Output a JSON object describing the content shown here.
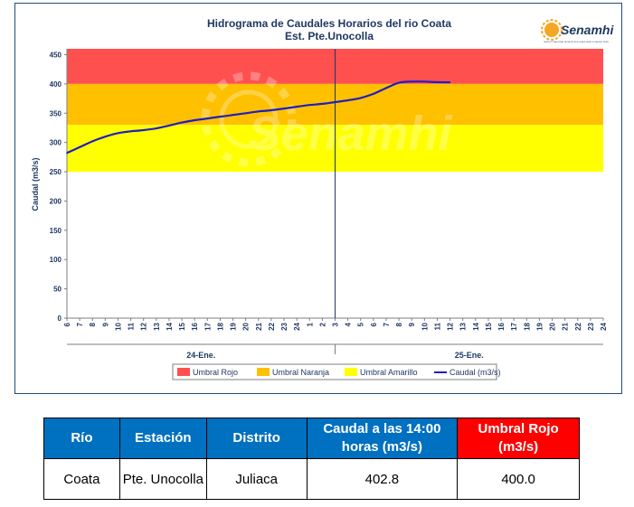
{
  "chart_data": {
    "type": "area",
    "title": "Hidrograma de Caudales Horarios del rio Coata",
    "subtitle": "Est. Pte.Unocolla",
    "ylabel": "Caudal (m3/s)",
    "ylim": [
      0,
      450
    ],
    "yticks": [
      0,
      50,
      100,
      150,
      200,
      250,
      300,
      350,
      400,
      450
    ],
    "x_tick_labels": [
      "6",
      "7",
      "8",
      "9",
      "10",
      "11",
      "12",
      "13",
      "14",
      "15",
      "16",
      "17",
      "18",
      "19",
      "20",
      "21",
      "22",
      "23",
      "24",
      "1",
      "2",
      "3",
      "4",
      "5",
      "6",
      "7",
      "8",
      "9",
      "10",
      "11",
      "12",
      "13",
      "14",
      "15",
      "16",
      "17",
      "18",
      "19",
      "20",
      "21",
      "22",
      "23",
      "24"
    ],
    "day_labels": [
      "24-Ene.",
      "25-Ene."
    ],
    "current_time_marker": "3",
    "bands": [
      {
        "name": "Umbral Rojo",
        "from": 400,
        "to": 460,
        "color": "#ff5050"
      },
      {
        "name": "Umbral Naranja",
        "from": 330,
        "to": 400,
        "color": "#ffc000"
      },
      {
        "name": "Umbral Amarillo",
        "from": 250,
        "to": 330,
        "color": "#ffff00"
      }
    ],
    "series": [
      {
        "name": "Caudal (m3/s)",
        "color": "#1f1fbf",
        "values": [
          282,
          292,
          302,
          310,
          316,
          319,
          321,
          324,
          329,
          334,
          338,
          341,
          344,
          347,
          350,
          353,
          355,
          358,
          361,
          364,
          366,
          369,
          372,
          376,
          383,
          393,
          402,
          404,
          404,
          403,
          402.8
        ]
      }
    ],
    "legend": [
      "Umbral Rojo",
      "Umbral Naranja",
      "Umbral Amarillo",
      "Caudal (m3/s)"
    ],
    "legend_position": "bottom",
    "grid": false
  },
  "logo": {
    "text": "Senamhi",
    "tagline": "SERVICIO NACIONAL DE METEOROLOGÍA E HIDROLOGÍA DEL PERÚ"
  },
  "watermark": "Senamhi",
  "table": {
    "headers": [
      "Río",
      "Estación",
      "Distrito",
      "Caudal a las 14:00 horas (m3/s)",
      "Umbral Rojo (m3/s)"
    ],
    "row": [
      "Coata",
      "Pte. Unocolla",
      "Juliaca",
      "402.8",
      "400.0"
    ]
  }
}
